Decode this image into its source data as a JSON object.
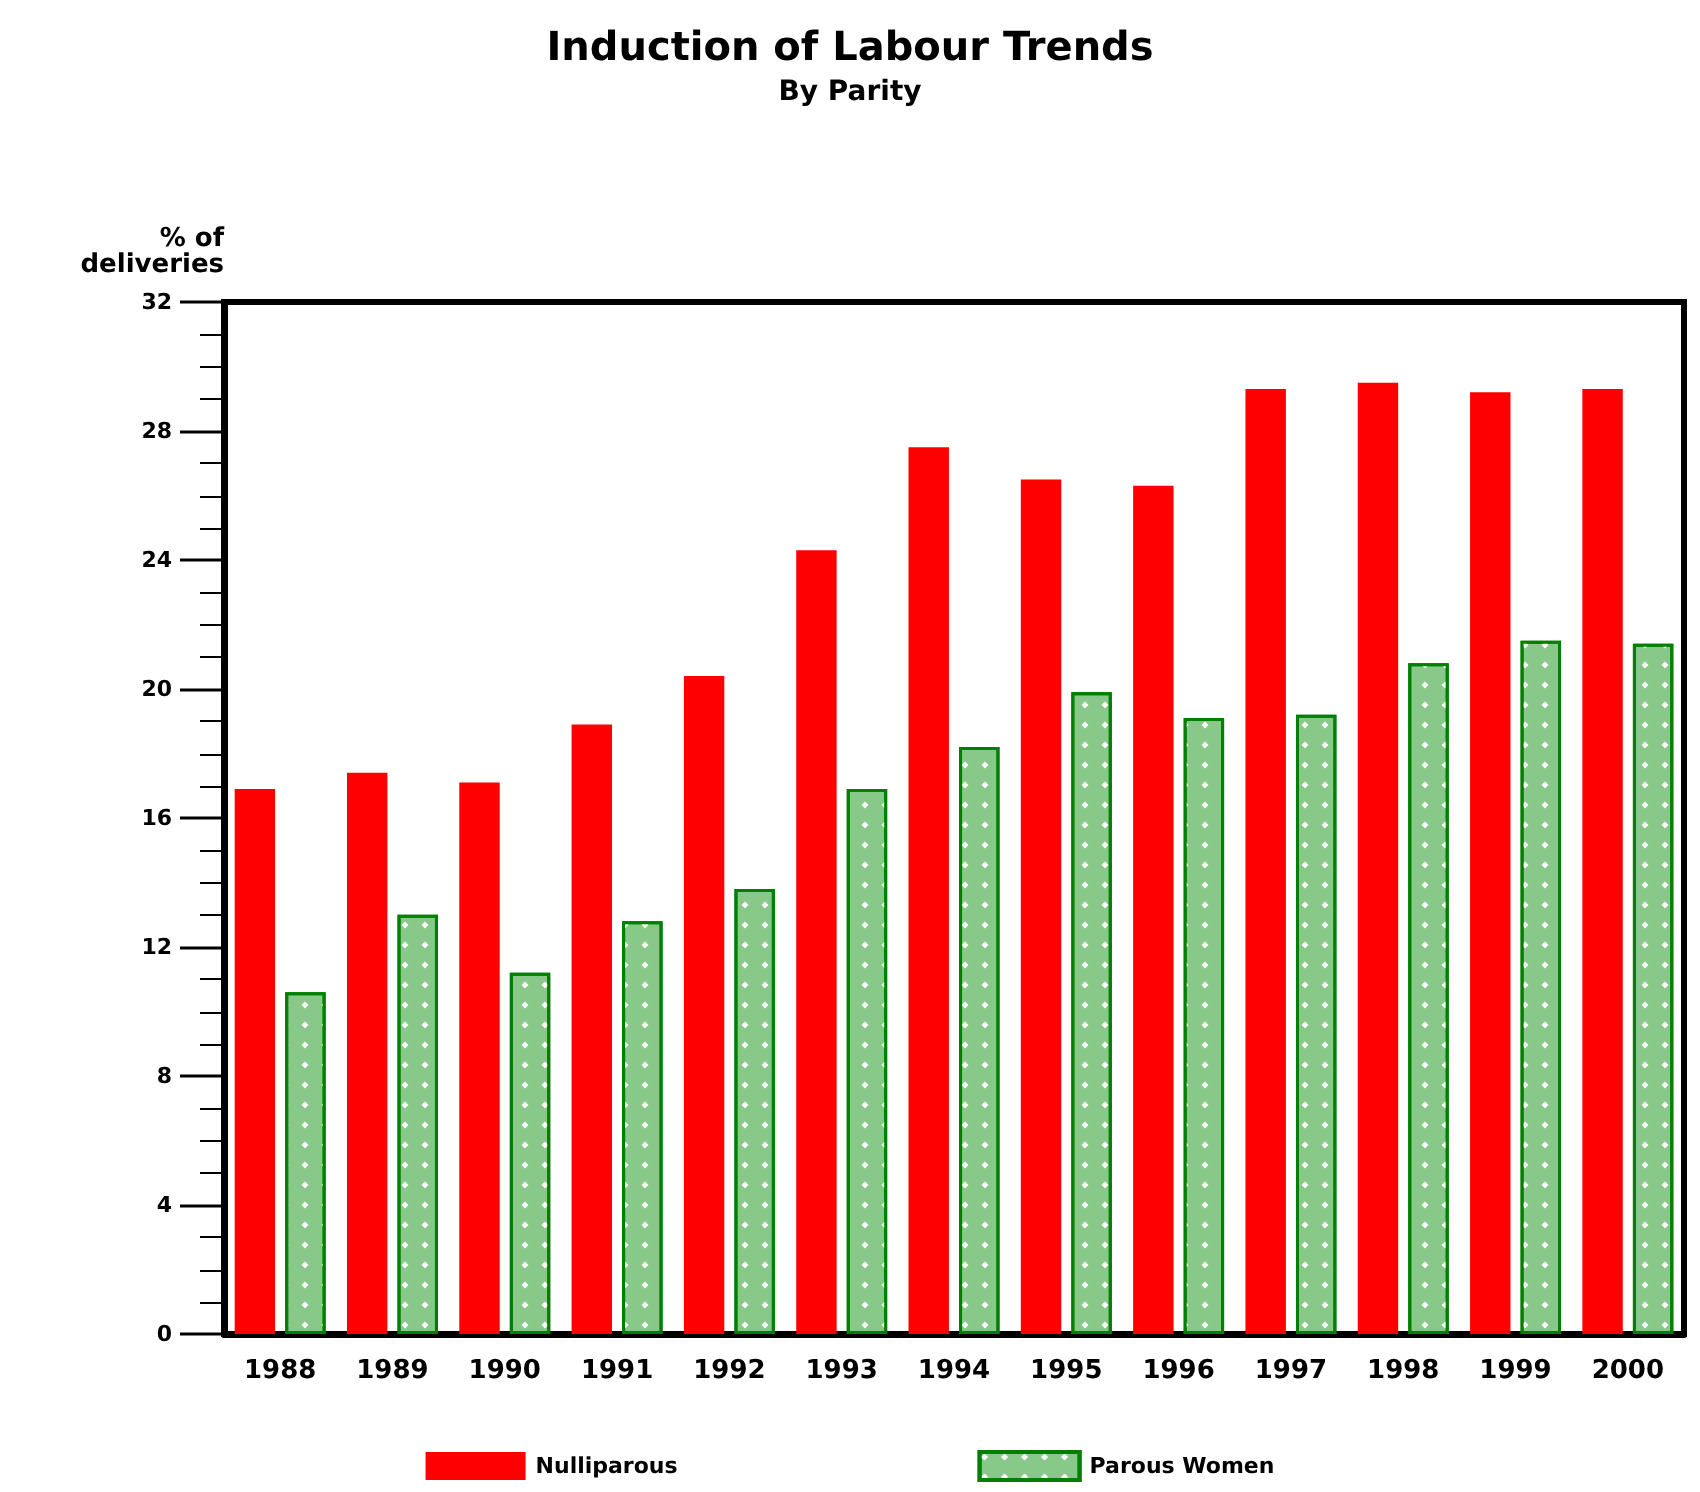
{
  "chart_data": {
    "type": "bar",
    "title": "Induction of Labour Trends",
    "subtitle": "By Parity",
    "ylabel": "% of\ndeliveries",
    "categories": [
      "1988",
      "1989",
      "1990",
      "1991",
      "1992",
      "1993",
      "1994",
      "1995",
      "1996",
      "1997",
      "1998",
      "1999",
      "2000"
    ],
    "series": [
      {
        "name": "Nulliparous",
        "color": "#ff0000",
        "values": [
          16.9,
          17.4,
          17.1,
          18.9,
          20.4,
          24.3,
          27.5,
          26.5,
          26.3,
          29.3,
          29.5,
          29.2,
          29.3
        ]
      },
      {
        "name": "Parous Women",
        "color": "#88c888",
        "values": [
          10.6,
          13.0,
          11.2,
          12.8,
          13.8,
          16.9,
          18.2,
          19.9,
          19.1,
          19.2,
          20.8,
          21.5,
          21.4
        ]
      }
    ],
    "ylim": [
      0,
      32
    ],
    "yticks": [
      0,
      4,
      8,
      12,
      16,
      20,
      24,
      28,
      32
    ],
    "grid": false,
    "legend": "bottom"
  }
}
